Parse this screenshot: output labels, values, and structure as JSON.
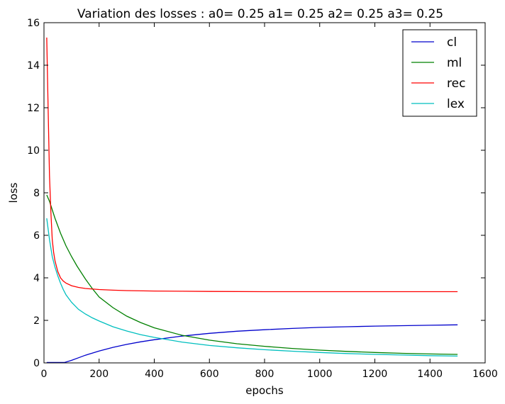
{
  "chart_data": {
    "type": "line",
    "title": "Variation des losses : a0= 0.25 a1= 0.25 a2= 0.25 a3= 0.25",
    "xlabel": "epochs",
    "ylabel": "loss",
    "xlim": [
      0,
      1600
    ],
    "ylim": [
      0,
      16
    ],
    "xticks": [
      0,
      200,
      400,
      600,
      800,
      1000,
      1200,
      1400,
      1600
    ],
    "yticks": [
      0,
      2,
      4,
      6,
      8,
      10,
      12,
      14,
      16
    ],
    "grid": false,
    "legend_position": "top-right",
    "series": [
      {
        "name": "cl",
        "color": "#0000cc",
        "x": [
          10,
          50,
          75,
          100,
          125,
          150,
          200,
          250,
          300,
          350,
          400,
          500,
          600,
          700,
          800,
          900,
          1000,
          1100,
          1200,
          1300,
          1400,
          1500
        ],
        "y": [
          0.02,
          0.02,
          0.02,
          0.12,
          0.24,
          0.36,
          0.56,
          0.73,
          0.87,
          0.99,
          1.09,
          1.26,
          1.39,
          1.49,
          1.56,
          1.62,
          1.67,
          1.7,
          1.73,
          1.75,
          1.77,
          1.79
        ]
      },
      {
        "name": "ml",
        "color": "#008000",
        "x": [
          10,
          20,
          30,
          40,
          50,
          60,
          70,
          80,
          100,
          120,
          150,
          175,
          200,
          250,
          300,
          350,
          400,
          500,
          600,
          700,
          800,
          900,
          1000,
          1100,
          1200,
          1300,
          1400,
          1500
        ],
        "y": [
          7.9,
          7.6,
          7.2,
          6.8,
          6.45,
          6.1,
          5.8,
          5.5,
          5.0,
          4.55,
          3.95,
          3.5,
          3.1,
          2.6,
          2.2,
          1.9,
          1.65,
          1.3,
          1.07,
          0.9,
          0.78,
          0.68,
          0.6,
          0.54,
          0.49,
          0.45,
          0.42,
          0.4
        ]
      },
      {
        "name": "rec",
        "color": "#ff0000",
        "x": [
          10,
          15,
          20,
          25,
          30,
          35,
          40,
          50,
          60,
          70,
          80,
          100,
          125,
          150,
          200,
          250,
          300,
          400,
          500,
          600,
          800,
          1000,
          1200,
          1400,
          1500
        ],
        "y": [
          15.3,
          12.0,
          8.8,
          7.1,
          5.8,
          5.2,
          4.8,
          4.3,
          4.0,
          3.85,
          3.75,
          3.63,
          3.55,
          3.5,
          3.45,
          3.42,
          3.4,
          3.38,
          3.37,
          3.36,
          3.35,
          3.35,
          3.35,
          3.35,
          3.35
        ]
      },
      {
        "name": "lex",
        "color": "#00bfbf",
        "x": [
          10,
          20,
          30,
          40,
          50,
          60,
          70,
          80,
          100,
          125,
          150,
          175,
          200,
          250,
          300,
          350,
          400,
          500,
          600,
          700,
          800,
          900,
          1000,
          1100,
          1200,
          1300,
          1400,
          1500
        ],
        "y": [
          6.8,
          5.8,
          5.0,
          4.5,
          4.1,
          3.75,
          3.45,
          3.2,
          2.85,
          2.52,
          2.3,
          2.12,
          1.97,
          1.7,
          1.5,
          1.33,
          1.2,
          0.98,
          0.82,
          0.71,
          0.62,
          0.55,
          0.49,
          0.44,
          0.4,
          0.37,
          0.34,
          0.32
        ]
      }
    ]
  }
}
